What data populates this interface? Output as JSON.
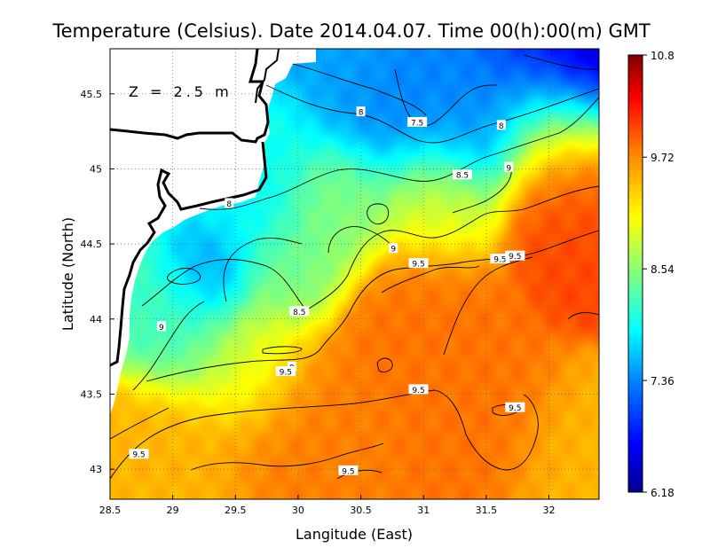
{
  "title": "Temperature (Celsius). Date 2014.04.07. Time 00(h):00(m) GMT",
  "depth_label": "Z = 2.5 m",
  "chart_data": {
    "type": "heatmap",
    "variable": "Temperature (Celsius)",
    "date": "2014.04.07",
    "time": "00(h):00(m) GMT",
    "depth": "2.5 m",
    "xlabel": "Langitude (East)",
    "ylabel": "Latitude (North)",
    "xlim": [
      28.5,
      32.4
    ],
    "ylim": [
      42.8,
      45.8
    ],
    "x_ticks": [
      {
        "value": 28.5,
        "label": "28.5"
      },
      {
        "value": 29,
        "label": "29"
      },
      {
        "value": 29.5,
        "label": "29.5"
      },
      {
        "value": 30,
        "label": "30"
      },
      {
        "value": 30.5,
        "label": "30.5"
      },
      {
        "value": 31,
        "label": "31"
      },
      {
        "value": 31.5,
        "label": "31.5"
      },
      {
        "value": 32,
        "label": "32"
      }
    ],
    "y_ticks": [
      {
        "value": 43,
        "label": "43"
      },
      {
        "value": 43.5,
        "label": "43.5"
      },
      {
        "value": 44,
        "label": "44"
      },
      {
        "value": 44.5,
        "label": "44.5"
      },
      {
        "value": 45,
        "label": "45"
      },
      {
        "value": 45.5,
        "label": "45.5"
      }
    ],
    "colorbar": {
      "min": 6.18,
      "max": 10.8,
      "ticks": [
        {
          "value": 10.8,
          "label": "10.8"
        },
        {
          "value": 9.72,
          "label": "9.72"
        },
        {
          "value": 8.54,
          "label": "8.54"
        },
        {
          "value": 7.36,
          "label": "7.36"
        },
        {
          "value": 6.18,
          "label": "6.18"
        }
      ],
      "colormap": [
        "#00008c",
        "#0000ff",
        "#0080ff",
        "#00ffff",
        "#80ff80",
        "#ffff00",
        "#ff8000",
        "#ff0000",
        "#800000"
      ]
    },
    "grid": true,
    "grid_style": "dotted",
    "contour_labels": [
      {
        "x": 30.5,
        "y": 45.38,
        "label": "8"
      },
      {
        "x": 30.95,
        "y": 45.31,
        "label": "7.5"
      },
      {
        "x": 31.62,
        "y": 45.29,
        "label": "8"
      },
      {
        "x": 31.68,
        "y": 45.01,
        "label": "9"
      },
      {
        "x": 31.31,
        "y": 44.96,
        "label": "8.5"
      },
      {
        "x": 29.45,
        "y": 44.77,
        "label": "8"
      },
      {
        "x": 30.76,
        "y": 44.47,
        "label": "9"
      },
      {
        "x": 30.96,
        "y": 44.37,
        "label": "9.5"
      },
      {
        "x": 31.61,
        "y": 44.4,
        "label": "9.5"
      },
      {
        "x": 31.73,
        "y": 44.42,
        "label": "9.5"
      },
      {
        "x": 30.01,
        "y": 44.05,
        "label": "8.5"
      },
      {
        "x": 28.91,
        "y": 43.95,
        "label": "9"
      },
      {
        "x": 29.95,
        "y": 43.68,
        "label": "9"
      },
      {
        "x": 29.9,
        "y": 43.65,
        "label": "9.5"
      },
      {
        "x": 30.96,
        "y": 43.53,
        "label": "9.5"
      },
      {
        "x": 31.73,
        "y": 43.41,
        "label": "9.5"
      },
      {
        "x": 28.73,
        "y": 43.1,
        "label": "9.5"
      },
      {
        "x": 30.4,
        "y": 42.99,
        "label": "9.5"
      }
    ],
    "field_features": [
      {
        "x": 32.3,
        "y": 45.72,
        "value": 6.3,
        "spread": 0.35
      },
      {
        "x": 31.95,
        "y": 45.62,
        "value": 6.9,
        "spread": 0.4
      },
      {
        "x": 30.9,
        "y": 45.45,
        "value": 7.35,
        "spread": 0.45
      },
      {
        "x": 31.4,
        "y": 45.35,
        "value": 7.4,
        "spread": 0.35
      },
      {
        "x": 30.3,
        "y": 45.7,
        "value": 7.5,
        "spread": 0.4
      },
      {
        "x": 29.3,
        "y": 44.3,
        "value": 7.4,
        "spread": 0.25
      },
      {
        "x": 29.6,
        "y": 44.75,
        "value": 7.9,
        "spread": 0.35
      },
      {
        "x": 29.8,
        "y": 45.2,
        "value": 8.0,
        "spread": 0.3
      },
      {
        "x": 29.1,
        "y": 44.0,
        "value": 8.2,
        "spread": 0.35
      },
      {
        "x": 30.3,
        "y": 44.75,
        "value": 8.5,
        "spread": 0.35
      },
      {
        "x": 29.9,
        "y": 44.3,
        "value": 8.45,
        "spread": 0.3
      },
      {
        "x": 29.6,
        "y": 43.7,
        "value": 8.8,
        "spread": 0.35
      },
      {
        "x": 31.1,
        "y": 44.8,
        "value": 8.9,
        "spread": 0.35
      },
      {
        "x": 32.1,
        "y": 45.2,
        "value": 9.5,
        "spread": 0.4
      },
      {
        "x": 32.2,
        "y": 44.7,
        "value": 9.9,
        "spread": 0.35
      },
      {
        "x": 31.0,
        "y": 44.0,
        "value": 9.7,
        "spread": 0.45
      },
      {
        "x": 30.0,
        "y": 43.3,
        "value": 9.65,
        "spread": 0.5
      },
      {
        "x": 31.5,
        "y": 43.2,
        "value": 9.7,
        "spread": 0.4
      },
      {
        "x": 29.0,
        "y": 43.0,
        "value": 9.4,
        "spread": 0.45
      },
      {
        "x": 32.1,
        "y": 43.0,
        "value": 9.4,
        "spread": 0.35
      }
    ]
  }
}
